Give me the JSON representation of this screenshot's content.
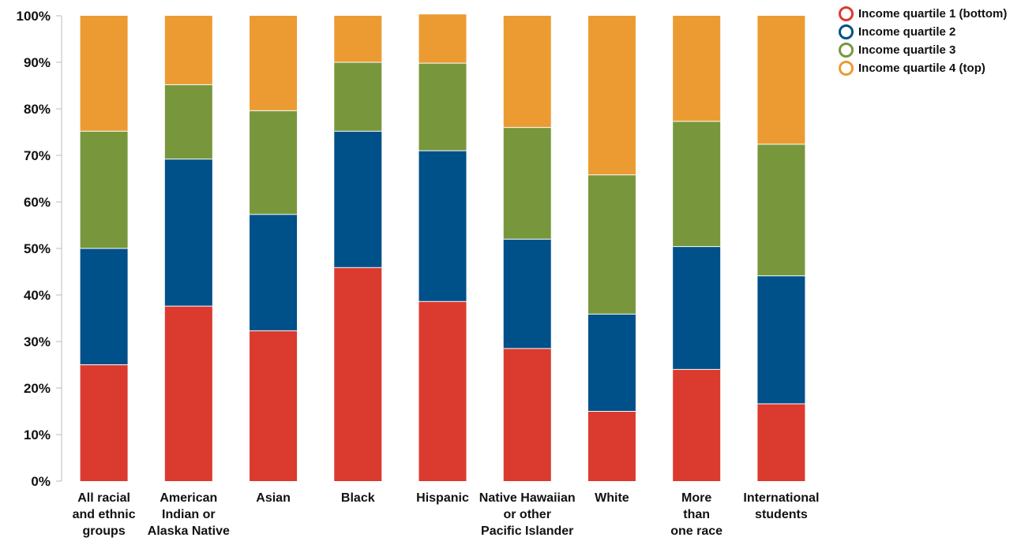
{
  "chart_data": {
    "type": "bar",
    "stacked": true,
    "categories": [
      [
        "All racial",
        "and ethnic",
        "groups"
      ],
      [
        "American",
        "Indian or",
        "Alaska Native"
      ],
      [
        "Asian"
      ],
      [
        "Black"
      ],
      [
        "Hispanic"
      ],
      [
        "Native Hawaiian",
        "or other",
        "Pacific Islander"
      ],
      [
        "White"
      ],
      [
        "More",
        "than",
        "one race"
      ],
      [
        "International",
        "students"
      ]
    ],
    "series": [
      {
        "name": "Income quartile 1 (bottom)",
        "color": "#db3a2f",
        "values": [
          25,
          37.6,
          32.3,
          45.9,
          38.6,
          28.5,
          15.0,
          24.0,
          16.6
        ]
      },
      {
        "name": "Income quartile 2",
        "color": "#005089",
        "values": [
          25,
          31.6,
          25.0,
          29.3,
          32.4,
          23.5,
          20.9,
          26.4,
          27.5
        ]
      },
      {
        "name": "Income quartile 3",
        "color": "#78973d",
        "values": [
          25.2,
          16.0,
          22.3,
          14.8,
          18.8,
          24.0,
          29.9,
          26.9,
          28.3
        ]
      },
      {
        "name": "Income quartile 4 (top)",
        "color": "#ec9b33",
        "values": [
          24.8,
          14.8,
          20.4,
          10.0,
          10.5,
          24.0,
          34.2,
          22.7,
          27.6
        ]
      }
    ],
    "ylim": [
      0,
      100
    ],
    "yticks": [
      "0%",
      "10%",
      "20%",
      "30%",
      "40%",
      "50%",
      "60%",
      "70%",
      "80%",
      "90%",
      "100%"
    ],
    "legend_position": "top-right"
  }
}
